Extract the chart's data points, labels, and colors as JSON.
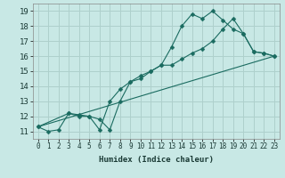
{
  "xlabel": "Humidex (Indice chaleur)",
  "xlim": [
    -0.5,
    23.5
  ],
  "ylim": [
    10.5,
    19.5
  ],
  "xticks": [
    0,
    1,
    2,
    3,
    4,
    5,
    6,
    7,
    8,
    9,
    10,
    11,
    12,
    13,
    14,
    15,
    16,
    17,
    18,
    19,
    20,
    21,
    22,
    23
  ],
  "yticks": [
    11,
    12,
    13,
    14,
    15,
    16,
    17,
    18,
    19
  ],
  "bg_color": "#c8e8e5",
  "grid_color": "#aed0cc",
  "line_color": "#1a6b60",
  "line1_x": [
    0,
    1,
    2,
    3,
    4,
    5,
    6,
    7,
    8,
    9,
    10,
    11,
    12,
    13,
    14,
    15,
    16,
    17,
    18,
    19,
    20,
    21,
    22,
    23
  ],
  "line1_y": [
    11.3,
    11.0,
    11.1,
    12.2,
    12.1,
    12.0,
    11.8,
    11.1,
    13.0,
    14.3,
    14.7,
    15.0,
    15.4,
    16.6,
    18.0,
    18.8,
    18.5,
    19.0,
    18.4,
    17.8,
    17.5,
    16.3,
    16.2,
    16.0
  ],
  "line2_x": [
    0,
    3,
    4,
    5,
    6,
    7,
    8,
    9,
    10,
    11,
    12,
    13,
    14,
    15,
    16,
    17,
    18,
    19,
    20,
    21,
    22,
    23
  ],
  "line2_y": [
    11.3,
    12.2,
    12.0,
    12.0,
    11.1,
    13.0,
    13.8,
    14.3,
    14.5,
    15.0,
    15.4,
    15.4,
    15.8,
    16.2,
    16.5,
    17.0,
    17.8,
    18.5,
    17.5,
    16.3,
    16.2,
    16.0
  ],
  "line3_x": [
    0,
    23
  ],
  "line3_y": [
    11.3,
    16.0
  ],
  "xlabel_fontsize": 6.5,
  "tick_fontsize": 5.5,
  "ytick_fontsize": 6.5,
  "marker_size": 2.5
}
